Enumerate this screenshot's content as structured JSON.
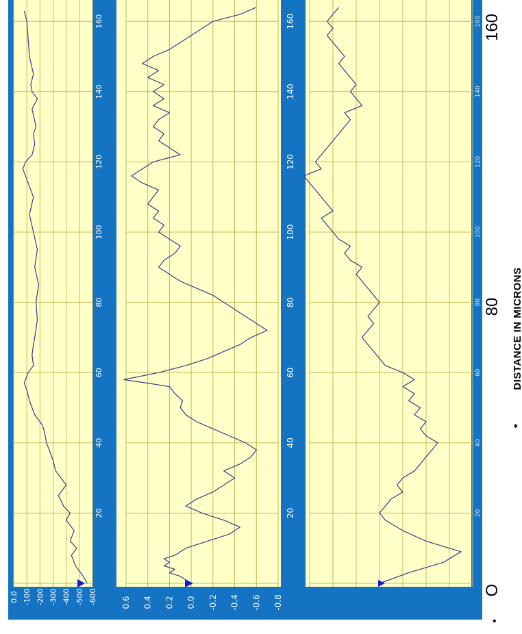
{
  "colors": {
    "frame": "#1473c2",
    "plot_bg": "#ffffc8",
    "grid": "#c9b85a",
    "curve": "#3a3a8a",
    "marker": "#1a1ad0"
  },
  "outer_labels": {
    "origin": "O",
    "mid": "80",
    "end": "160",
    "axis_title": "DISTANCE IN MICRONS",
    "axis_title_prefix": "*",
    "corner_mark": "•"
  },
  "chart_data": [
    {
      "type": "line",
      "panel": "1",
      "title": "",
      "xlabel": "DISTANCE IN MICRONS",
      "ylabel": "",
      "x_ticks": [
        "20",
        "40",
        "60",
        "80",
        "100",
        "120",
        "140",
        "160"
      ],
      "y_ticks": [
        "0.0",
        "-100",
        "-200",
        "-300",
        "-400",
        "-500",
        "-600"
      ],
      "ylim": [
        -600,
        0
      ],
      "xlim": [
        0,
        165
      ],
      "series": [
        {
          "x": [
            0,
            2,
            5,
            8,
            10,
            12,
            15,
            18,
            20,
            22,
            25,
            28,
            30,
            32,
            35,
            38,
            40,
            42,
            45,
            48,
            50,
            52,
            55,
            57,
            60,
            62,
            65,
            68,
            70,
            75,
            80,
            85,
            90,
            95,
            100,
            105,
            110,
            115,
            118,
            120,
            122,
            125,
            128,
            130,
            135,
            138,
            140,
            142,
            145,
            150,
            155,
            160,
            163
          ],
          "y": [
            -560,
            -530,
            -470,
            -440,
            -480,
            -430,
            -460,
            -400,
            -430,
            -380,
            -340,
            -400,
            -360,
            -320,
            -300,
            -270,
            -250,
            -240,
            -220,
            -160,
            -140,
            -120,
            -100,
            -80,
            -110,
            -150,
            -140,
            -150,
            -160,
            -180,
            -170,
            -190,
            -160,
            -180,
            -150,
            -120,
            -150,
            -100,
            -70,
            -90,
            -140,
            -160,
            -150,
            -170,
            -140,
            -180,
            -140,
            -130,
            -150,
            -120,
            -110,
            -100,
            -80
          ]
        }
      ]
    },
    {
      "type": "line",
      "panel": "2",
      "title": "",
      "xlabel": "DISTANCE IN MICRONS",
      "ylabel": "",
      "x_ticks": [
        "20",
        "40",
        "60",
        "80",
        "100",
        "120",
        "140",
        "160"
      ],
      "y_ticks": [
        "0.6",
        "0.4",
        "0.2",
        "0.0",
        "-0.2",
        "-0.4",
        "-0.6",
        "-0.8"
      ],
      "ylim": [
        -0.8,
        0.6
      ],
      "xlim": [
        0,
        165
      ],
      "series": [
        {
          "x": [
            0,
            2,
            3,
            4,
            5,
            6,
            7,
            8,
            10,
            12,
            14,
            16,
            18,
            20,
            22,
            24,
            26,
            28,
            30,
            32,
            34,
            36,
            38,
            40,
            42,
            44,
            46,
            48,
            50,
            52,
            54,
            56,
            57,
            58,
            60,
            62,
            64,
            66,
            68,
            70,
            72,
            74,
            76,
            78,
            80,
            82,
            84,
            86,
            88,
            90,
            92,
            94,
            96,
            98,
            100,
            102,
            104,
            106,
            108,
            110,
            112,
            114,
            116,
            118,
            120,
            122,
            124,
            126,
            128,
            130,
            132,
            134,
            136,
            138,
            140,
            142,
            144,
            146,
            148,
            150,
            152,
            154,
            156,
            158,
            160,
            162,
            164
          ],
          "y": [
            0.0,
            0.1,
            0.2,
            0.15,
            0.25,
            0.2,
            0.25,
            0.15,
            0.05,
            -0.15,
            -0.35,
            -0.45,
            -0.3,
            -0.1,
            0.05,
            -0.05,
            -0.2,
            -0.3,
            -0.4,
            -0.3,
            -0.45,
            -0.55,
            -0.6,
            -0.5,
            -0.35,
            -0.2,
            -0.05,
            0.05,
            0.1,
            0.08,
            0.15,
            0.2,
            0.4,
            0.62,
            0.3,
            0.05,
            -0.15,
            -0.3,
            -0.45,
            -0.55,
            -0.7,
            -0.6,
            -0.5,
            -0.4,
            -0.3,
            -0.2,
            -0.05,
            0.1,
            0.2,
            0.3,
            0.25,
            0.15,
            0.1,
            0.2,
            0.3,
            0.25,
            0.35,
            0.3,
            0.4,
            0.35,
            0.3,
            0.45,
            0.55,
            0.45,
            0.35,
            0.1,
            0.2,
            0.3,
            0.25,
            0.35,
            0.3,
            0.2,
            0.35,
            0.25,
            0.35,
            0.25,
            0.4,
            0.3,
            0.45,
            0.35,
            0.2,
            0.1,
            0.0,
            -0.1,
            -0.2,
            -0.45,
            -0.6
          ]
        }
      ]
    },
    {
      "type": "line",
      "panel": "3",
      "title": "",
      "xlabel": "DISTANCE IN MICRONS",
      "ylabel": "",
      "x_ticks": [
        "20",
        "40",
        "60",
        "80",
        "100",
        "120",
        "140",
        "160"
      ],
      "y_ticks": [],
      "ylim": [
        -0.8,
        0.6
      ],
      "xlim": [
        0,
        165
      ],
      "series": [
        {
          "x": [
            0,
            3,
            6,
            9,
            10,
            12,
            15,
            18,
            20,
            22,
            24,
            26,
            28,
            30,
            32,
            34,
            36,
            38,
            40,
            42,
            44,
            46,
            48,
            50,
            52,
            54,
            56,
            58,
            60,
            62,
            64,
            66,
            68,
            70,
            72,
            74,
            76,
            78,
            80,
            82,
            84,
            86,
            88,
            90,
            92,
            94,
            96,
            98,
            100,
            102,
            104,
            106,
            108,
            110,
            112,
            114,
            116,
            118,
            120,
            122,
            124,
            126,
            128,
            130,
            132,
            134,
            136,
            138,
            140,
            142,
            144,
            146,
            148,
            150,
            152,
            154,
            156,
            158,
            160,
            162,
            164
          ],
          "y": [
            0.0,
            -0.25,
            -0.55,
            -0.7,
            -0.6,
            -0.4,
            -0.2,
            -0.05,
            0.0,
            -0.05,
            -0.1,
            -0.2,
            -0.15,
            -0.2,
            -0.3,
            -0.35,
            -0.4,
            -0.45,
            -0.5,
            -0.4,
            -0.35,
            -0.4,
            -0.3,
            -0.35,
            -0.25,
            -0.3,
            -0.2,
            -0.3,
            -0.2,
            -0.05,
            0.0,
            0.05,
            0.1,
            0.15,
            0.1,
            0.05,
            0.1,
            0.05,
            0.0,
            0.05,
            0.1,
            0.15,
            0.2,
            0.15,
            0.25,
            0.3,
            0.25,
            0.35,
            0.4,
            0.45,
            0.5,
            0.4,
            0.45,
            0.5,
            0.55,
            0.6,
            0.65,
            0.5,
            0.55,
            0.5,
            0.45,
            0.4,
            0.35,
            0.3,
            0.25,
            0.3,
            0.15,
            0.2,
            0.25,
            0.2,
            0.25,
            0.3,
            0.35,
            0.3,
            0.35,
            0.4,
            0.45,
            0.4,
            0.45,
            0.4,
            0.35
          ]
        }
      ]
    }
  ]
}
